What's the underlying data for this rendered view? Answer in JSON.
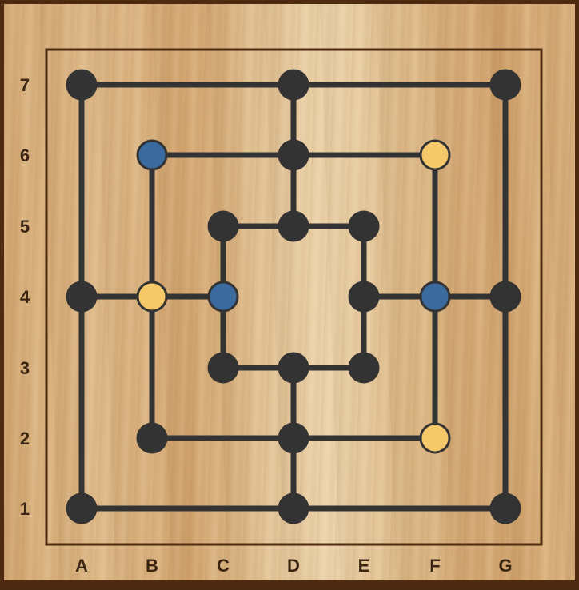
{
  "board": {
    "columns": [
      "A",
      "B",
      "C",
      "D",
      "E",
      "F",
      "G"
    ],
    "rows": [
      "7",
      "6",
      "5",
      "4",
      "3",
      "2",
      "1"
    ],
    "colors": {
      "line": "#333333",
      "empty": "#333333",
      "blue": "#3a6a9e",
      "yellow": "#f5c869",
      "frame": "#4e2a10"
    },
    "points": [
      {
        "id": "a7",
        "col": "A",
        "row": "7",
        "piece": "empty"
      },
      {
        "id": "d7",
        "col": "D",
        "row": "7",
        "piece": "empty"
      },
      {
        "id": "g7",
        "col": "G",
        "row": "7",
        "piece": "empty"
      },
      {
        "id": "b6",
        "col": "B",
        "row": "6",
        "piece": "blue"
      },
      {
        "id": "d6",
        "col": "D",
        "row": "6",
        "piece": "empty"
      },
      {
        "id": "f6",
        "col": "F",
        "row": "6",
        "piece": "yellow"
      },
      {
        "id": "c5",
        "col": "C",
        "row": "5",
        "piece": "empty"
      },
      {
        "id": "d5",
        "col": "D",
        "row": "5",
        "piece": "empty"
      },
      {
        "id": "e5",
        "col": "E",
        "row": "5",
        "piece": "empty"
      },
      {
        "id": "a4",
        "col": "A",
        "row": "4",
        "piece": "empty"
      },
      {
        "id": "b4",
        "col": "B",
        "row": "4",
        "piece": "yellow"
      },
      {
        "id": "c4",
        "col": "C",
        "row": "4",
        "piece": "blue"
      },
      {
        "id": "e4",
        "col": "E",
        "row": "4",
        "piece": "empty"
      },
      {
        "id": "f4",
        "col": "F",
        "row": "4",
        "piece": "blue"
      },
      {
        "id": "g4",
        "col": "G",
        "row": "4",
        "piece": "empty"
      },
      {
        "id": "c3",
        "col": "C",
        "row": "3",
        "piece": "empty"
      },
      {
        "id": "d3",
        "col": "D",
        "row": "3",
        "piece": "empty"
      },
      {
        "id": "e3",
        "col": "E",
        "row": "3",
        "piece": "empty"
      },
      {
        "id": "b2",
        "col": "B",
        "row": "2",
        "piece": "empty"
      },
      {
        "id": "d2",
        "col": "D",
        "row": "2",
        "piece": "empty"
      },
      {
        "id": "f2",
        "col": "F",
        "row": "2",
        "piece": "yellow"
      },
      {
        "id": "a1",
        "col": "A",
        "row": "1",
        "piece": "empty"
      },
      {
        "id": "d1",
        "col": "D",
        "row": "1",
        "piece": "empty"
      },
      {
        "id": "g1",
        "col": "G",
        "row": "1",
        "piece": "empty"
      }
    ]
  }
}
